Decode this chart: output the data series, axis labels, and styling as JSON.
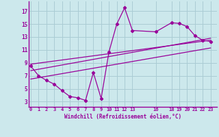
{
  "xlabel": "Windchill (Refroidissement éolien,°C)",
  "background_color": "#cce8ec",
  "grid_color": "#aaccd4",
  "line_color": "#990099",
  "x_data": [
    0,
    1,
    2,
    3,
    4,
    5,
    6,
    7,
    8,
    9,
    10,
    11,
    12,
    13,
    16,
    18,
    19,
    20,
    21,
    22,
    23
  ],
  "y_data": [
    8.5,
    7.0,
    6.3,
    5.7,
    4.7,
    3.8,
    3.6,
    3.2,
    7.5,
    3.5,
    10.7,
    15.0,
    17.5,
    14.0,
    13.8,
    15.2,
    15.1,
    14.6,
    13.2,
    12.5,
    12.3
  ],
  "trend1_x": [
    0,
    23
  ],
  "trend1_y": [
    8.8,
    12.5
  ],
  "trend2_x": [
    0,
    23
  ],
  "trend2_y": [
    7.8,
    12.8
  ],
  "trend3_x": [
    0,
    23
  ],
  "trend3_y": [
    6.5,
    11.3
  ],
  "y_ticks": [
    3,
    5,
    7,
    9,
    11,
    13,
    15,
    17
  ],
  "x_ticks": [
    0,
    1,
    2,
    3,
    4,
    5,
    6,
    7,
    8,
    9,
    10,
    11,
    12,
    13,
    16,
    18,
    19,
    20,
    21,
    22,
    23
  ],
  "xlim": [
    -0.3,
    23.8
  ],
  "ylim": [
    2.2,
    18.5
  ]
}
